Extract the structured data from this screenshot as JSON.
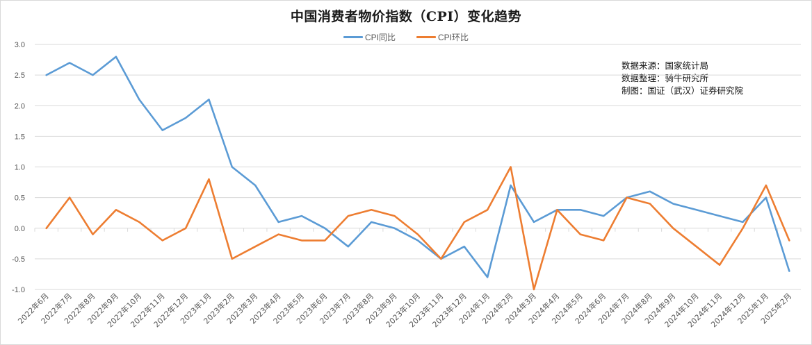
{
  "title": "中国消费者物价指数（CPI）变化趋势",
  "legend": [
    {
      "label": "CPI同比",
      "color": "#5b9bd5"
    },
    {
      "label": "CPI环比",
      "color": "#ed7d31"
    }
  ],
  "notes": [
    "数据来源：国家统计局",
    "数据整理：骑牛研究所",
    "制图：国证（武汉）证券研究院"
  ],
  "chart_data": {
    "type": "line",
    "title": "中国消费者物价指数（CPI）变化趋势",
    "xlabel": "",
    "ylabel": "",
    "ylim": [
      -1.0,
      3.0
    ],
    "yticks": [
      "3.0",
      "2.5",
      "2.0",
      "1.5",
      "1.0",
      "0.5",
      "0.0",
      "-0.5",
      "-1.0"
    ],
    "grid": true,
    "legend_position": "top",
    "categories": [
      "2022年6月",
      "2022年7月",
      "2022年8月",
      "2022年9月",
      "2022年10月",
      "2022年11月",
      "2022年12月",
      "2023年1月",
      "2023年2月",
      "2023年3月",
      "2023年4月",
      "2023年5月",
      "2023年6月",
      "2023年7月",
      "2023年8月",
      "2023年9月",
      "2023年10月",
      "2023年11月",
      "2023年12月",
      "2024年1月",
      "2024年2月",
      "2024年3月",
      "2024年4月",
      "2024年5月",
      "2024年6月",
      "2024年7月",
      "2024年8月",
      "2024年9月",
      "2024年10月",
      "2024年11月",
      "2024年12月",
      "2025年1月",
      "2025年2月"
    ],
    "series": [
      {
        "name": "CPI同比",
        "color": "#5b9bd5",
        "values": [
          2.5,
          2.7,
          2.5,
          2.8,
          2.1,
          1.6,
          1.8,
          2.1,
          1.0,
          0.7,
          0.1,
          0.2,
          0.0,
          -0.3,
          0.1,
          0.0,
          -0.2,
          -0.5,
          -0.3,
          -0.8,
          0.7,
          0.1,
          0.3,
          0.3,
          0.2,
          0.5,
          0.6,
          0.4,
          0.3,
          0.2,
          0.1,
          0.5,
          -0.7
        ]
      },
      {
        "name": "CPI环比",
        "color": "#ed7d31",
        "values": [
          0.0,
          0.5,
          -0.1,
          0.3,
          0.1,
          -0.2,
          0.0,
          0.8,
          -0.5,
          -0.3,
          -0.1,
          -0.2,
          -0.2,
          0.2,
          0.3,
          0.2,
          -0.1,
          -0.5,
          0.1,
          0.3,
          1.0,
          -1.0,
          0.3,
          -0.1,
          -0.2,
          0.5,
          0.4,
          0.0,
          -0.3,
          -0.6,
          0.0,
          0.7,
          -0.2
        ]
      }
    ]
  }
}
